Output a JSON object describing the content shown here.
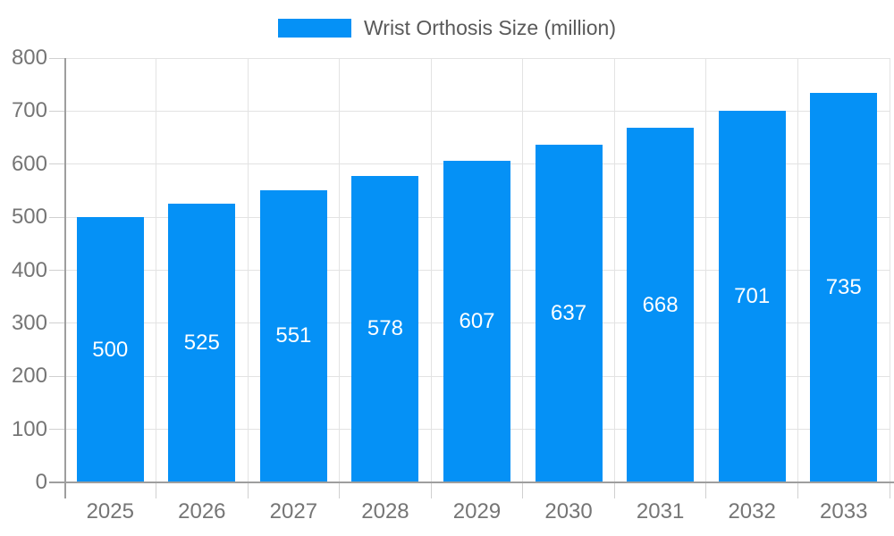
{
  "legend": {
    "label": "Wrist Orthosis Size (million)"
  },
  "colors": {
    "bar": "#0591f6",
    "grid": "#e3e3e3",
    "tick": "#d0d0d0",
    "axis_line": "#9e9e9e",
    "tick_label": "#757575",
    "legend_text": "#595959",
    "bar_label": "#ffffff",
    "background": "#ffffff"
  },
  "chart_data": {
    "type": "bar",
    "title": "Wrist Orthosis Size (million)",
    "categories": [
      "2025",
      "2026",
      "2027",
      "2028",
      "2029",
      "2030",
      "2031",
      "2032",
      "2033"
    ],
    "values": [
      500,
      525,
      551,
      578,
      607,
      637,
      668,
      701,
      735
    ],
    "xlabel": "",
    "ylabel": "",
    "ylim": [
      0,
      800
    ],
    "yticks": [
      0,
      100,
      200,
      300,
      400,
      500,
      600,
      700,
      800
    ],
    "ytick_interval": 100,
    "grid": true,
    "legend_position": "top-center",
    "bar_value_labels": "inside-center"
  }
}
